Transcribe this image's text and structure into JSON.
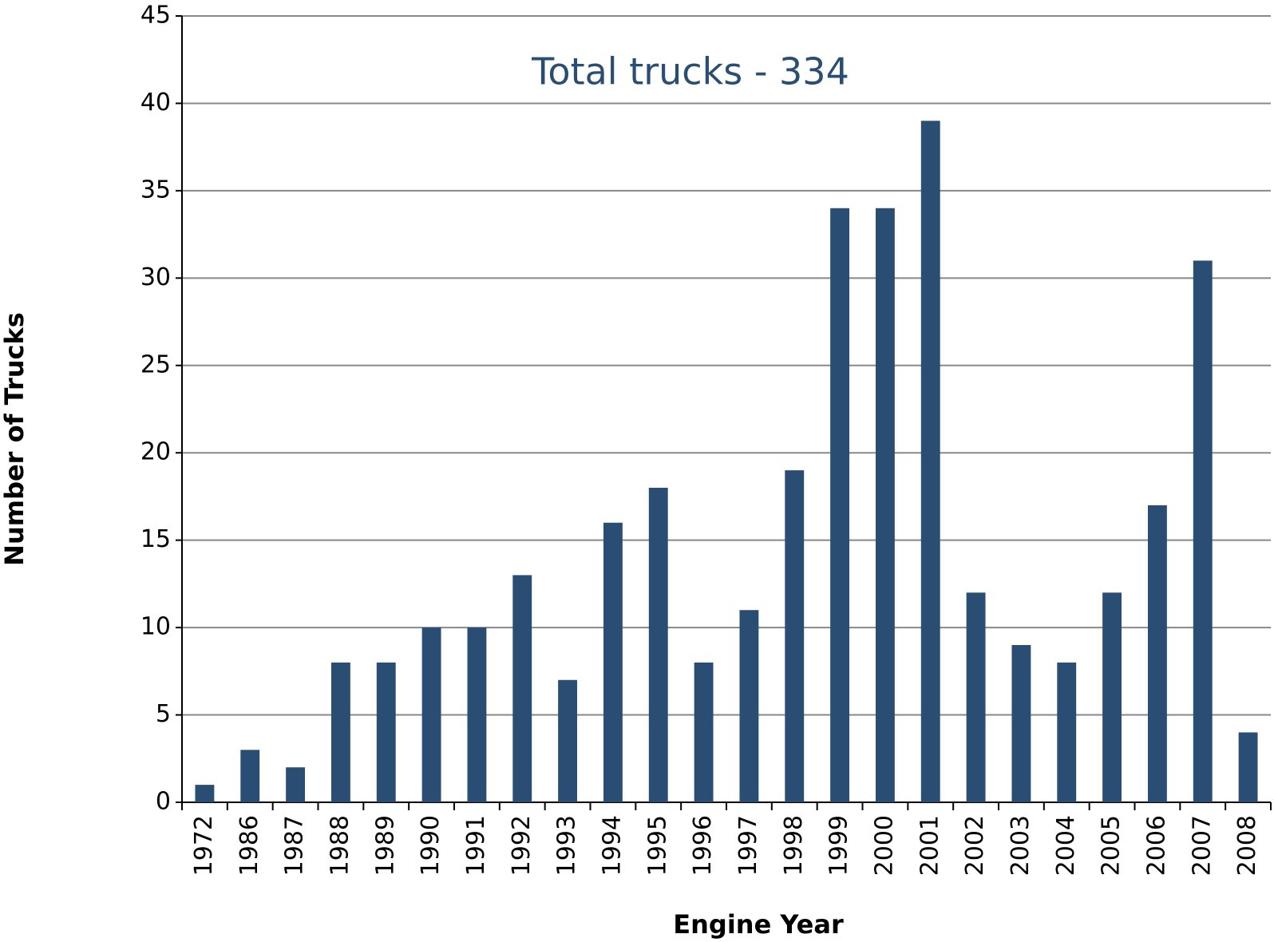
{
  "chart_data": {
    "type": "bar",
    "annotation": "Total trucks - 334",
    "x_label": "Engine Year",
    "y_label": "Number of Trucks",
    "categories": [
      "1972",
      "1986",
      "1987",
      "1988",
      "1989",
      "1990",
      "1991",
      "1992",
      "1993",
      "1994",
      "1995",
      "1996",
      "1997",
      "1998",
      "1999",
      "2000",
      "2001",
      "2002",
      "2003",
      "2004",
      "2005",
      "2006",
      "2007",
      "2008"
    ],
    "values": [
      1,
      3,
      2,
      8,
      8,
      10,
      10,
      13,
      7,
      16,
      18,
      8,
      11,
      19,
      34,
      34,
      39,
      12,
      9,
      8,
      12,
      17,
      31,
      4
    ],
    "color": "#2a4d73",
    "ylim": [
      0,
      45
    ],
    "yticks": [
      0,
      5,
      10,
      15,
      20,
      25,
      30,
      35,
      40,
      45
    ],
    "grid": true
  }
}
